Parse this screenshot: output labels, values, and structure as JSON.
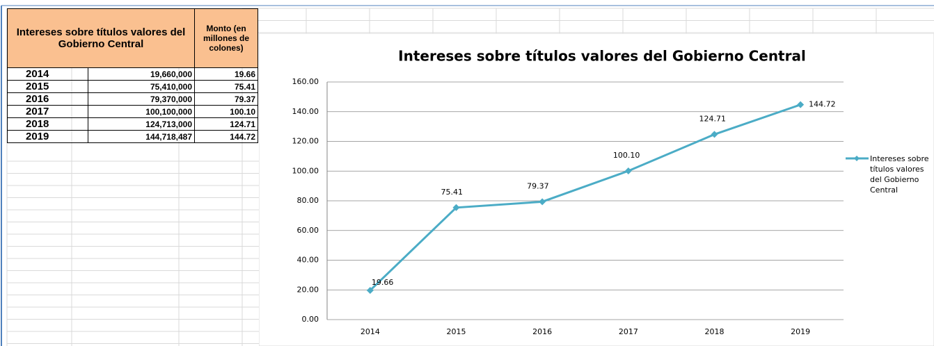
{
  "table": {
    "header": [
      "Intereses sobre títulos valores del Gobierno Central",
      "Monto (en millones de colones)"
    ],
    "rows": [
      [
        "2014",
        "19,660,000",
        "19.66"
      ],
      [
        "2015",
        "75,410,000",
        "75.41"
      ],
      [
        "2016",
        "79,370,000",
        "79.37"
      ],
      [
        "2017",
        "100,100,000",
        "100.10"
      ],
      [
        "2018",
        "124,713,000",
        "124.71"
      ],
      [
        "2019",
        "144,718,487",
        "144.72"
      ]
    ]
  },
  "chart_data": {
    "type": "line",
    "title": "Intereses sobre títulos valores del Gobierno Central",
    "categories": [
      "2014",
      "2015",
      "2016",
      "2017",
      "2018",
      "2019"
    ],
    "series": [
      {
        "name": "Intereses sobre títulos valores del Gobierno Central",
        "color": "#4bacc6",
        "values": [
          19.66,
          75.41,
          79.37,
          100.1,
          124.71,
          144.72
        ],
        "value_labels": [
          "19.66",
          "75.41",
          "79.37",
          "100.10",
          "124.71",
          "144.72"
        ]
      }
    ],
    "ylim": [
      0,
      160
    ],
    "yticks": [
      {
        "value": 0,
        "label": "0.00"
      },
      {
        "value": 20,
        "label": "20.00"
      },
      {
        "value": 40,
        "label": "40.00"
      },
      {
        "value": 60,
        "label": "60.00"
      },
      {
        "value": 80,
        "label": "80.00"
      },
      {
        "value": 100,
        "label": "100.00"
      },
      {
        "value": 120,
        "label": "120.00"
      },
      {
        "value": 140,
        "label": "140.00"
      },
      {
        "value": 160,
        "label": "160.00"
      }
    ],
    "grid": true,
    "legend": "right"
  }
}
